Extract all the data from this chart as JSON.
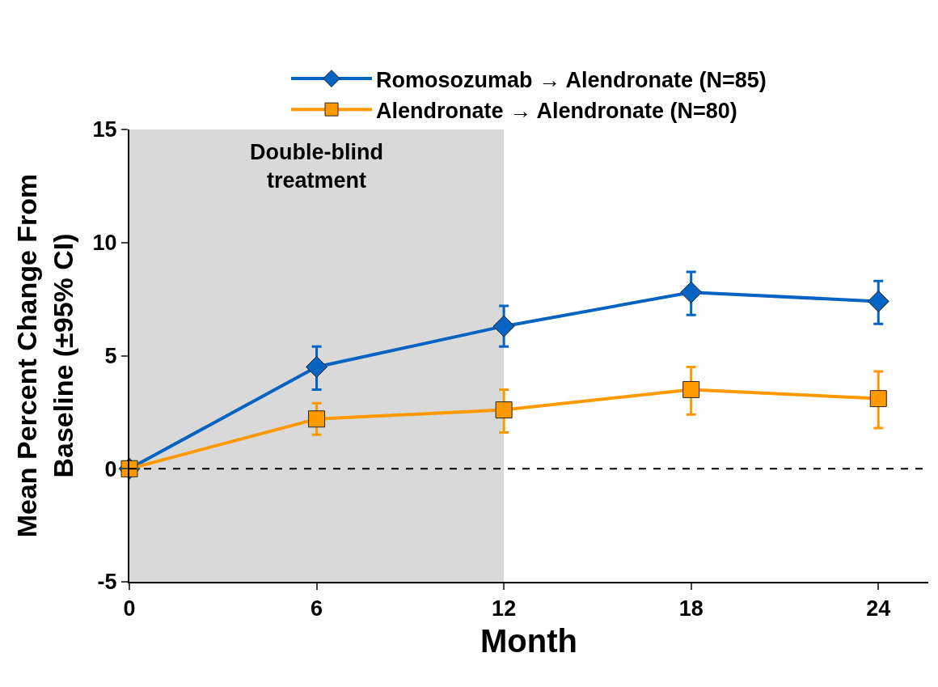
{
  "chart_data": {
    "type": "line",
    "xlabel": "Month",
    "ylabel": "Mean Percent Change From Baseline (±95% CI)",
    "x": [
      0,
      6,
      12,
      18,
      24
    ],
    "series": [
      {
        "name": "Romosozumab → Alendronate (N=85)",
        "color": "#0563c1",
        "marker": "diamond",
        "values": [
          0,
          4.5,
          6.3,
          7.8,
          7.4
        ],
        "errors": [
          null,
          [
            3.5,
            5.4
          ],
          [
            5.4,
            7.2
          ],
          [
            6.8,
            8.7
          ],
          [
            6.4,
            8.3
          ]
        ]
      },
      {
        "name": "Alendronate → Alendronate (N=80)",
        "color": "#ff9900",
        "marker": "square",
        "values": [
          0,
          2.2,
          2.6,
          3.5,
          3.1
        ],
        "errors": [
          null,
          [
            1.5,
            2.9
          ],
          [
            1.6,
            3.5
          ],
          [
            2.4,
            4.5
          ],
          [
            1.8,
            4.3
          ]
        ]
      }
    ],
    "xlim": [
      0,
      25.6
    ],
    "xticks": [
      0,
      6,
      12,
      18,
      24
    ],
    "ylim": [
      -5,
      15
    ],
    "yticks": [
      -5,
      0,
      5,
      10,
      15
    ],
    "grid": false,
    "legend": "top",
    "ref_lines": [
      {
        "axis": "y",
        "value": 0,
        "color": "#000000",
        "line_style": "dashed"
      }
    ],
    "bands": [
      {
        "axis": "x",
        "from": 0,
        "to": 12,
        "label": "Double-blind treatment",
        "color": "#d9d9d9"
      }
    ]
  }
}
